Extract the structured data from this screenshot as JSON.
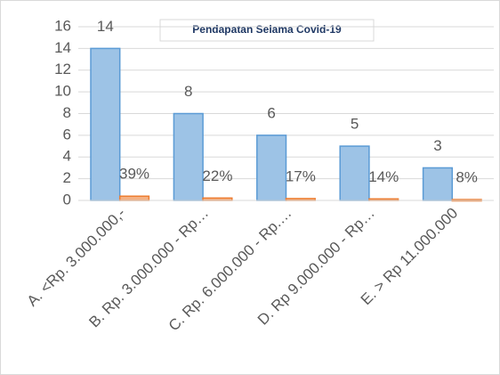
{
  "chart_data": {
    "type": "bar",
    "title": "Pendapatan Selama Covid-19",
    "categories": [
      "A. <Rp. 3.000.000,-",
      "B. Rp. 3.000.000 - Rp…",
      "C. Rp. 6.000.000 - Rp.…",
      "D. Rp 9.000.000 - Rp…",
      "E. > Rp 11.000.000"
    ],
    "series": [
      {
        "color": "#9dc3e6",
        "values": [
          14,
          8,
          6,
          5,
          3
        ]
      },
      {
        "color": "#f4b183",
        "values": [
          0.39,
          0.22,
          0.17,
          0.14,
          0.08
        ],
        "value_labels": [
          "39%",
          "22%",
          "17%",
          "14%",
          "8%"
        ]
      }
    ],
    "ylim": [
      0,
      16
    ],
    "yticks": [
      0,
      2,
      4,
      6,
      8,
      10,
      12,
      14,
      16
    ],
    "grid": true
  }
}
